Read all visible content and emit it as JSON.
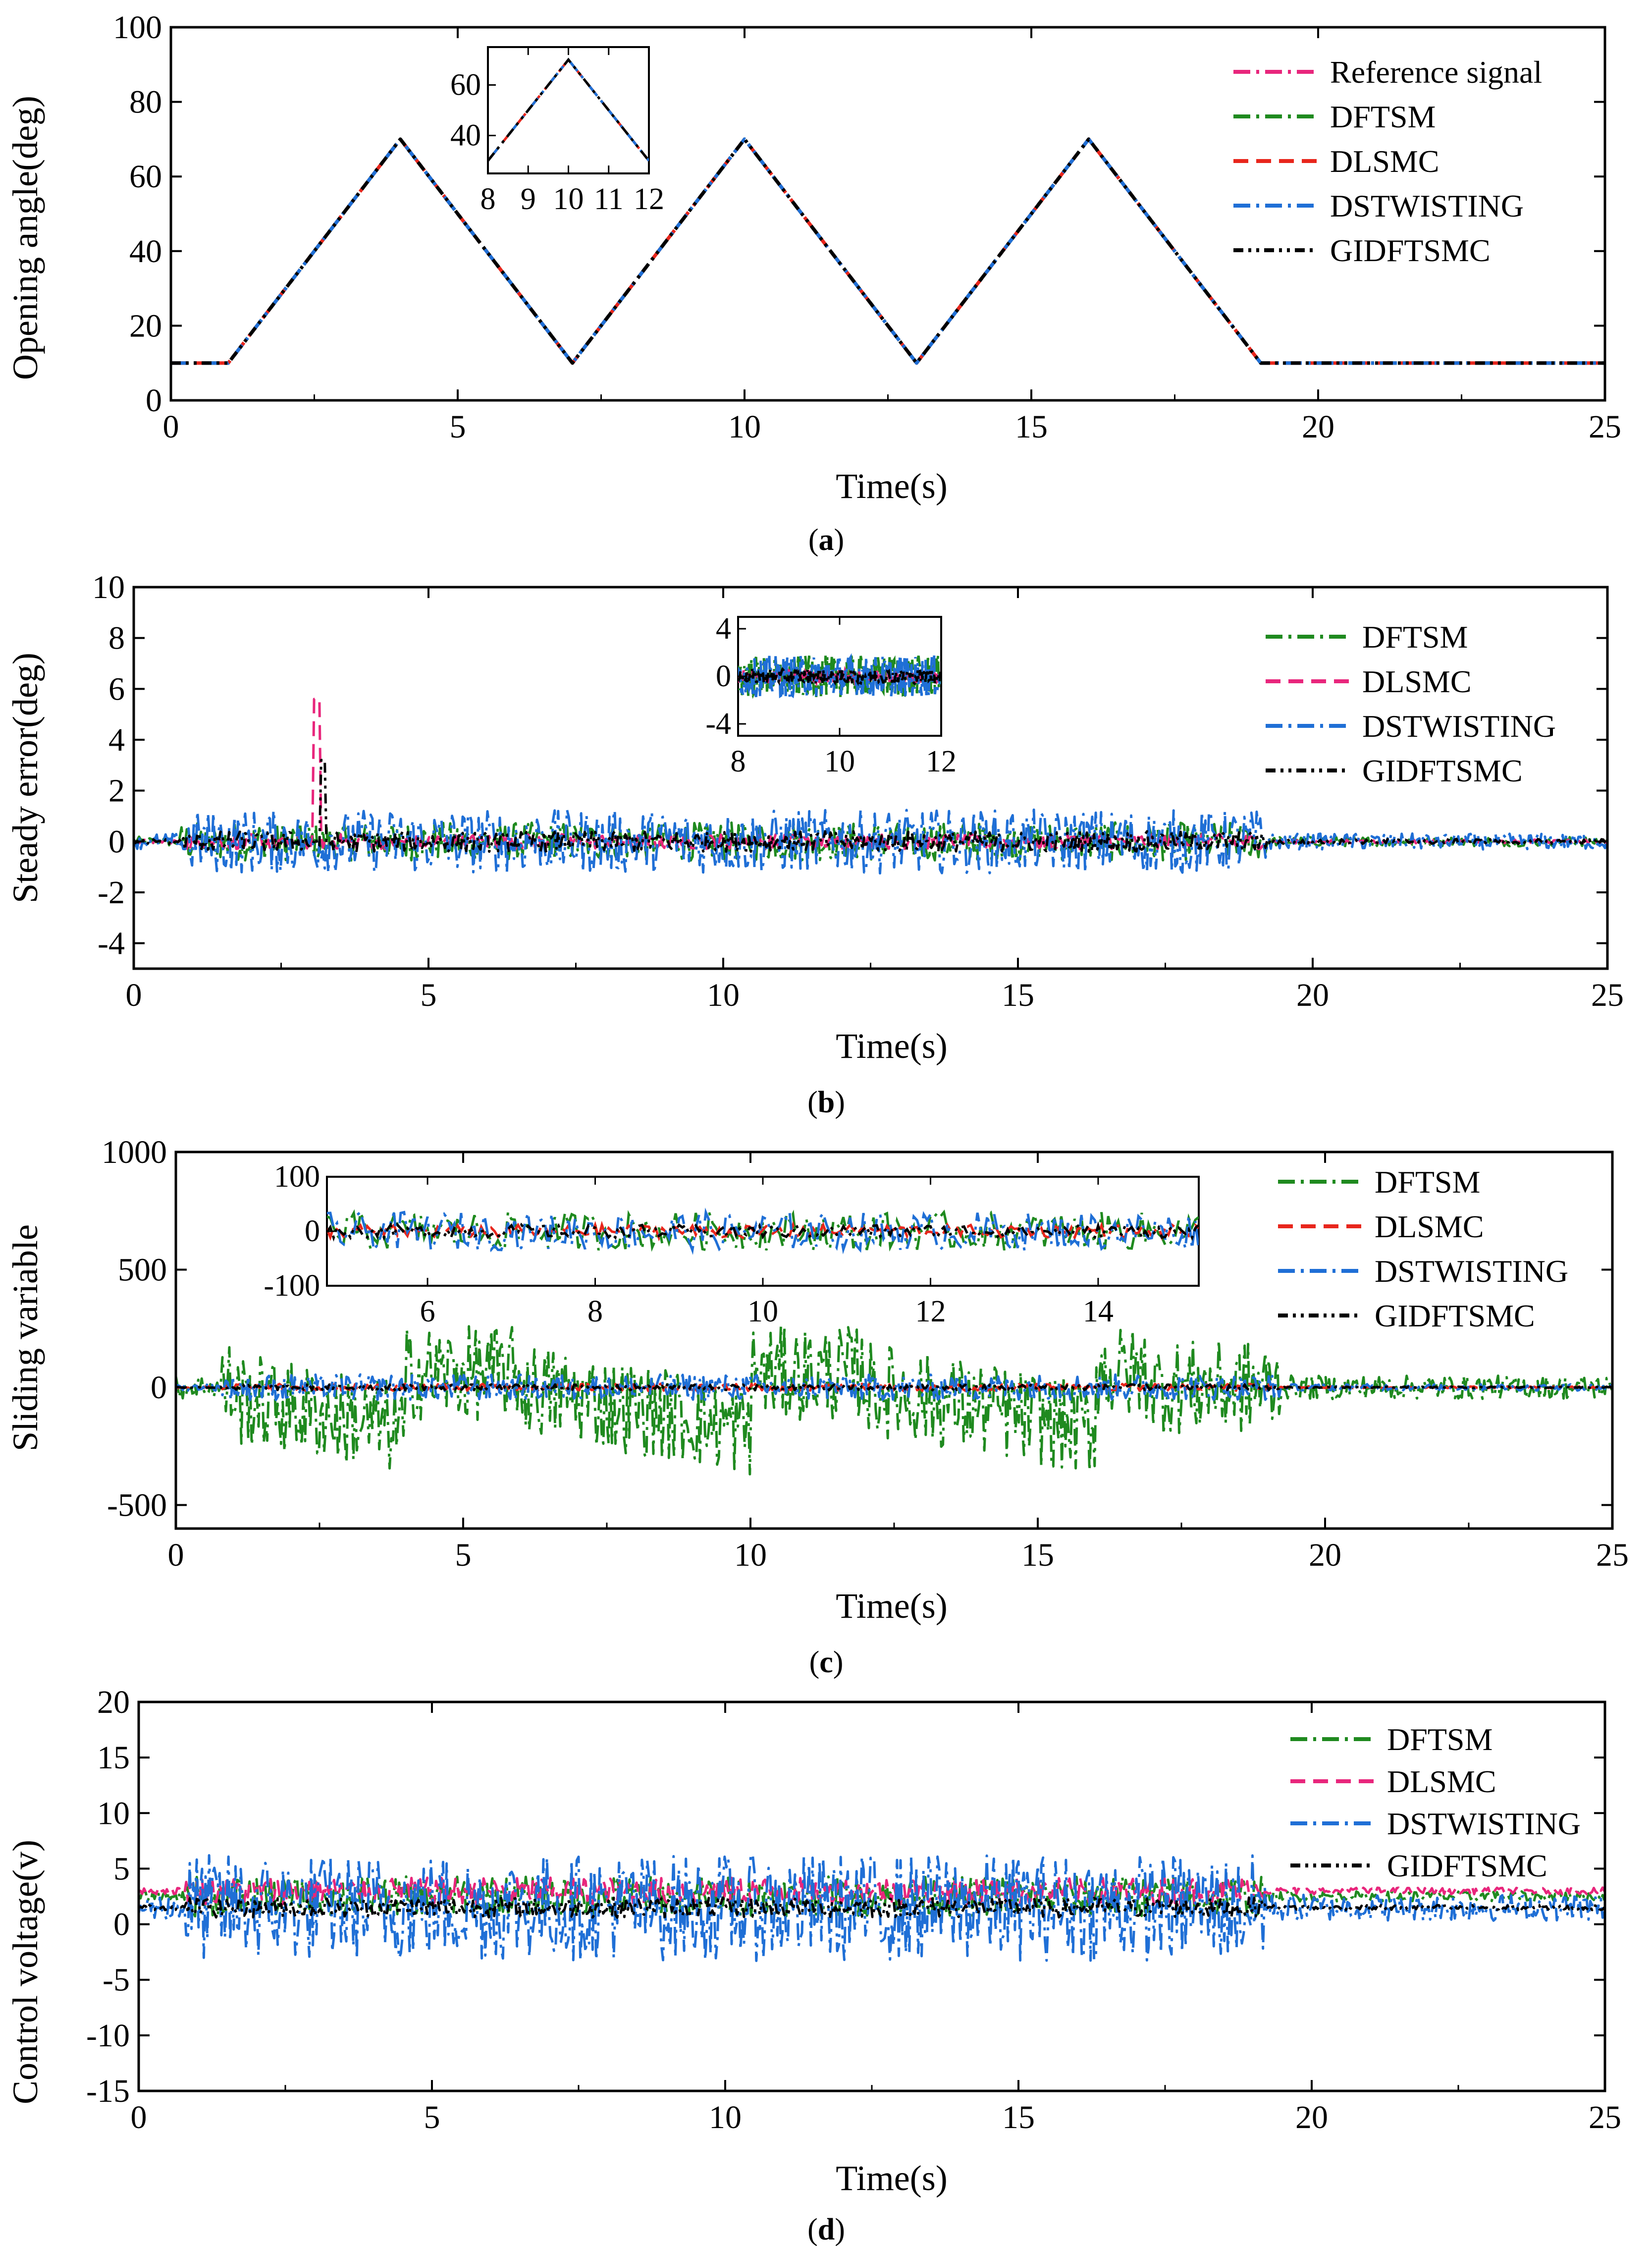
{
  "figure": {
    "colors": {
      "ref": "#e8267c",
      "dftsm": "#1f8a1f",
      "dlsmc": "#e8261c",
      "dlsmc_pink": "#e8267c",
      "dstwisting": "#1f6fd6",
      "gidftsmc": "#000000"
    }
  },
  "chart_data": [
    {
      "id": "a",
      "type": "line",
      "caption": "(a)",
      "caption_letter": "a",
      "xlabel": "Time(s)",
      "ylabel": "Opening angle(deg)",
      "xlim": [
        0,
        25
      ],
      "ylim": [
        0,
        100
      ],
      "xticks": [
        "0",
        "5",
        "10",
        "15",
        "20",
        "25"
      ],
      "yticks": [
        "0",
        "20",
        "40",
        "60",
        "80",
        "100"
      ],
      "x": [
        0,
        1,
        4,
        7,
        10,
        13,
        16,
        19,
        25
      ],
      "series": [
        {
          "name": "Reference signal",
          "color": "#e8267c",
          "values": [
            10,
            10,
            70,
            10,
            70,
            10,
            70,
            10,
            10
          ]
        },
        {
          "name": "DFTSM",
          "color": "#1f8a1f",
          "values": [
            10,
            10,
            70,
            10,
            70,
            10,
            70,
            10,
            10
          ]
        },
        {
          "name": "DLSMC",
          "color": "#e8261c",
          "values": [
            10,
            10,
            70,
            10,
            70,
            10,
            70,
            10,
            10
          ]
        },
        {
          "name": "DSTWISTING",
          "color": "#1f6fd6",
          "values": [
            10,
            10,
            70,
            10,
            70,
            10,
            70,
            10,
            10
          ]
        },
        {
          "name": "GIDFTSMC",
          "color": "#000000",
          "values": [
            10,
            10,
            70,
            10,
            70,
            10,
            70,
            10,
            10
          ]
        }
      ],
      "inset": {
        "xlim": [
          8,
          12
        ],
        "ylim": [
          25,
          75
        ],
        "xticks": [
          "8",
          "9",
          "10",
          "11",
          "12"
        ],
        "yticks": [
          "40",
          "60"
        ],
        "x": [
          8,
          10,
          12
        ],
        "values": [
          30,
          70,
          30
        ]
      }
    },
    {
      "id": "b",
      "type": "line",
      "caption": "(b)",
      "caption_letter": "b",
      "xlabel": "Time(s)",
      "ylabel": "Steady error(deg)",
      "xlim": [
        0,
        25
      ],
      "ylim": [
        -5,
        10
      ],
      "xticks": [
        "0",
        "5",
        "10",
        "15",
        "20",
        "25"
      ],
      "yticks": [
        "-4",
        "-2",
        "0",
        "2",
        "4",
        "6",
        "8",
        "10"
      ],
      "series": [
        {
          "name": "DFTSM",
          "color": "#1f8a1f",
          "amplitude": 1.5
        },
        {
          "name": "DLSMC",
          "color": "#e8267c",
          "amplitude": 0.6,
          "peak": {
            "x": 3.1,
            "y": 5.6
          }
        },
        {
          "name": "DSTWISTING",
          "color": "#1f6fd6",
          "amplitude": 2.5
        },
        {
          "name": "GIDFTSMC",
          "color": "#000000",
          "amplitude": 0.8,
          "peak": {
            "x": 3.2,
            "y": 3.2
          }
        }
      ],
      "inset": {
        "xlim": [
          8,
          12
        ],
        "ylim": [
          -5,
          5
        ],
        "xticks": [
          "8",
          "10",
          "12"
        ],
        "yticks": [
          "4",
          "0",
          "-4"
        ]
      }
    },
    {
      "id": "c",
      "type": "line",
      "caption": "(c)",
      "caption_letter": "c",
      "xlabel": "Time(s)",
      "ylabel": "Sliding variable",
      "xlim": [
        0,
        25
      ],
      "ylim": [
        -600,
        1000
      ],
      "xticks": [
        "0",
        "5",
        "10",
        "15",
        "20",
        "25"
      ],
      "yticks": [
        "-500",
        "0",
        "500",
        "1000"
      ],
      "series": [
        {
          "name": "DFTSM",
          "color": "#1f8a1f",
          "amplitude": 400
        },
        {
          "name": "DLSMC",
          "color": "#e8261c",
          "amplitude": 30
        },
        {
          "name": "DSTWISTING",
          "color": "#1f6fd6",
          "amplitude": 110
        },
        {
          "name": "GIDFTSMC",
          "color": "#000000",
          "amplitude": 25
        }
      ],
      "inset": {
        "xlim": [
          4.8,
          15.2
        ],
        "ylim": [
          -100,
          100
        ],
        "xticks": [
          "6",
          "8",
          "10",
          "12",
          "14"
        ],
        "yticks": [
          "100",
          "0",
          "-100"
        ]
      }
    },
    {
      "id": "d",
      "type": "line",
      "caption": "(d)",
      "caption_letter": "d",
      "xlabel": "Time(s)",
      "ylabel": "Control voltage(v)",
      "xlim": [
        0,
        25
      ],
      "ylim": [
        -15,
        20
      ],
      "xticks": [
        "0",
        "5",
        "10",
        "15",
        "20",
        "25"
      ],
      "yticks": [
        "-15",
        "-10",
        "-5",
        "0",
        "5",
        "10",
        "15",
        "20"
      ],
      "series": [
        {
          "name": "DFTSM",
          "color": "#1f8a1f",
          "amplitude": 3
        },
        {
          "name": "DLSMC",
          "color": "#e8267c",
          "amplitude": 2
        },
        {
          "name": "DSTWISTING",
          "color": "#1f6fd6",
          "amplitude": 8
        },
        {
          "name": "GIDFTSMC",
          "color": "#000000",
          "amplitude": 1.5
        }
      ]
    }
  ]
}
